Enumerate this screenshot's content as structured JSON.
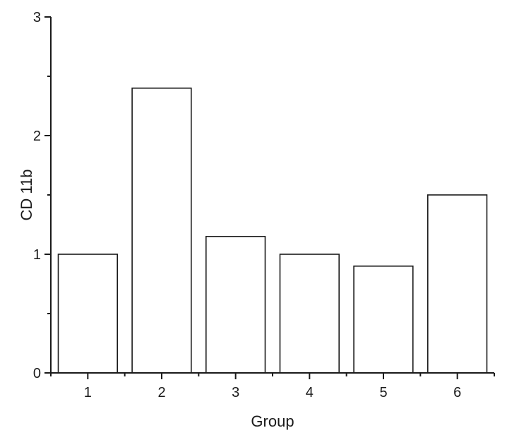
{
  "chart_data": {
    "type": "bar",
    "categories": [
      "1",
      "2",
      "3",
      "4",
      "5",
      "6"
    ],
    "values": [
      1.0,
      2.4,
      1.15,
      1.0,
      0.9,
      1.5
    ],
    "title": "",
    "xlabel": "Group",
    "ylabel": "CD 11b",
    "xlim": [
      0.5,
      6.5
    ],
    "ylim": [
      0,
      3
    ],
    "y_major_ticks": [
      0,
      1,
      2,
      3
    ],
    "y_minor_ticks": [
      0.5,
      1.5,
      2.5
    ],
    "x_major_ticks": [
      1,
      2,
      3,
      4,
      5,
      6
    ],
    "x_minor_ticks": [
      0.5,
      1.5,
      2.5,
      3.5,
      4.5,
      5.5,
      6.5
    ],
    "bar_width_units": 0.8,
    "bar_fill": "#ffffff",
    "bar_stroke": "#1a1a1a",
    "axis_color": "#1a1a1a",
    "background": "#ffffff",
    "grid": false,
    "legend": null
  }
}
